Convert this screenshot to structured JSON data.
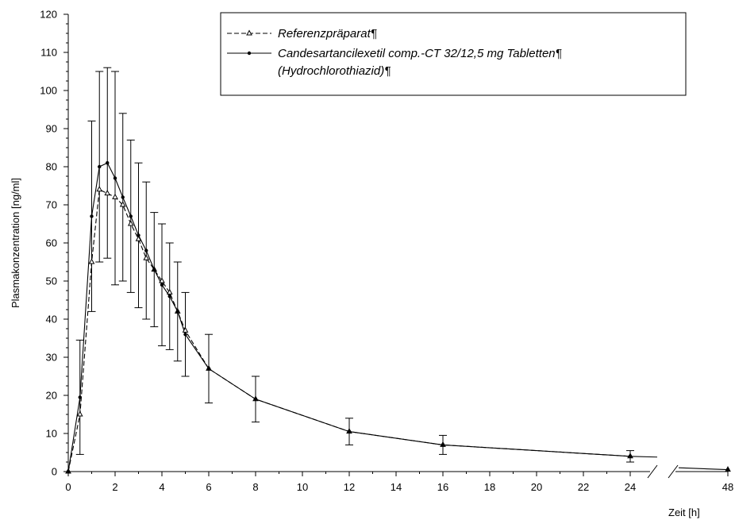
{
  "chart_data": {
    "type": "line",
    "xlabel": "Zeit [h]",
    "ylabel": "Plasmakonzentration [ng/ml]",
    "ylim": [
      0,
      120
    ],
    "xlim": [
      0,
      48
    ],
    "axis_break": [
      25,
      47
    ],
    "x_ticks": [
      0,
      2,
      4,
      6,
      8,
      10,
      12,
      14,
      16,
      18,
      20,
      22,
      24,
      48
    ],
    "y_ticks": [
      0,
      10,
      20,
      30,
      40,
      50,
      60,
      70,
      80,
      90,
      100,
      110,
      120
    ],
    "legend_position": "top-right",
    "series": [
      {
        "name": "Referenzpräparat¶",
        "style": "dashed",
        "marker": "open-triangle",
        "x": [
          0,
          0.5,
          1,
          1.33,
          1.67,
          2,
          2.33,
          2.67,
          3,
          3.33,
          3.67,
          4,
          4.33,
          4.67,
          5,
          6,
          8,
          12,
          16,
          24,
          48
        ],
        "y": [
          0,
          15,
          55,
          74,
          73,
          72,
          70,
          65,
          61,
          56,
          53,
          50,
          47,
          42,
          37,
          27,
          19,
          10.5,
          7,
          4,
          0.5
        ]
      },
      {
        "name": "Candesartancilexetil comp.-CT 32/12,5 mg Tabletten¶ (Hydrochlorothiazid)¶",
        "style": "solid",
        "marker": "filled-dot",
        "x": [
          0,
          0.5,
          1,
          1.33,
          1.67,
          2,
          2.33,
          2.67,
          3,
          3.33,
          3.67,
          4,
          4.33,
          4.67,
          5,
          6,
          8,
          12,
          16,
          24,
          48
        ],
        "y": [
          0,
          19.5,
          67,
          80,
          81,
          77,
          72,
          67,
          62,
          58,
          53,
          49,
          46,
          42,
          36,
          27,
          19,
          10.5,
          7,
          4,
          0.5
        ],
        "err": [
          0,
          15,
          25,
          25,
          25,
          28,
          22,
          20,
          19,
          18,
          15,
          16,
          14,
          13,
          11,
          9,
          6,
          3.5,
          2.5,
          1.5,
          0
        ]
      }
    ]
  }
}
